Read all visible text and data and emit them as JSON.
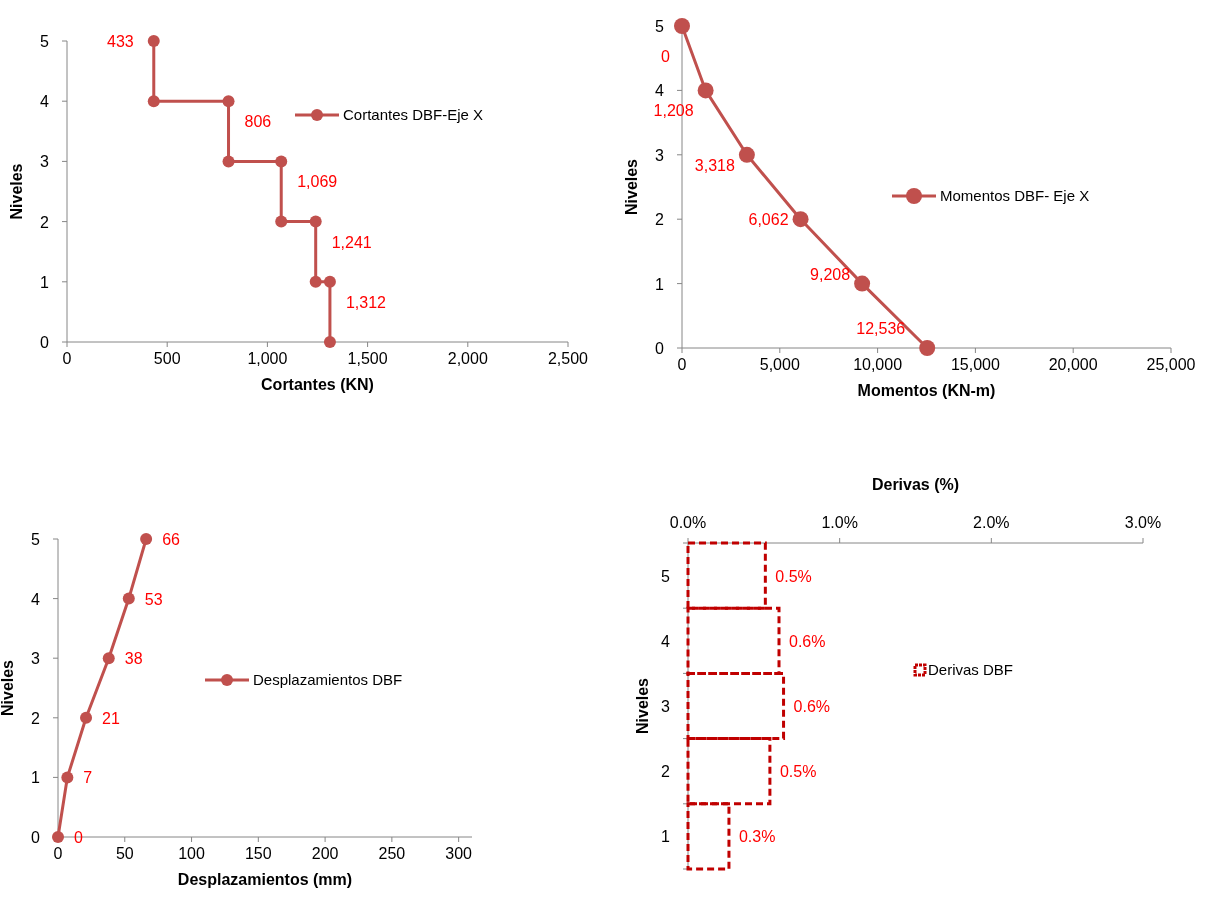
{
  "chart_data": [
    {
      "type": "line",
      "xlabel": "Cortantes (KN)",
      "ylabel": "Niveles",
      "xlim": [
        0,
        2500
      ],
      "xticks": [
        0,
        500,
        {
          "value": 1000,
          "label": "1,000"
        },
        {
          "value": 1500,
          "label": "1,500"
        },
        {
          "value": 2000,
          "label": "2,000"
        },
        {
          "value": 2500,
          "label": "2,500"
        }
      ],
      "ylim": [
        0,
        5
      ],
      "yticks": [
        0,
        1,
        2,
        3,
        4,
        5
      ],
      "marker": "circle",
      "legend": "right",
      "series": [
        {
          "name": "Cortantes DBF-Eje X",
          "color": "#c0504d",
          "x": [
            433,
            433,
            806,
            806,
            1069,
            1069,
            1241,
            1241,
            1312,
            1312
          ],
          "values": [
            5,
            4,
            4,
            3,
            3,
            2,
            2,
            1,
            1,
            0
          ]
        }
      ],
      "annotations": [
        {
          "text": "433",
          "x": 433,
          "y": 5
        },
        {
          "text": "806",
          "x": 806,
          "y": 4
        },
        {
          "text": "1,069",
          "x": 1069,
          "y": 3
        },
        {
          "text": "1,241",
          "x": 1241,
          "y": 2
        },
        {
          "text": "1,312",
          "x": 1312,
          "y": 1
        }
      ]
    },
    {
      "type": "line",
      "xlabel": "Momentos (KN-m)",
      "ylabel": "Niveles",
      "xlim": [
        0,
        25000
      ],
      "xticks": [
        0,
        {
          "value": 5000,
          "label": "5,000"
        },
        {
          "value": 10000,
          "label": "10,000"
        },
        {
          "value": 15000,
          "label": "15,000"
        },
        {
          "value": 20000,
          "label": "20,000"
        },
        {
          "value": 25000,
          "label": "25,000"
        }
      ],
      "ylim": [
        0,
        5
      ],
      "yticks": [
        0,
        1,
        2,
        3,
        4,
        5
      ],
      "marker": "circle",
      "legend": "right",
      "series": [
        {
          "name": "Momentos DBF- Eje X",
          "color": "#c0504d",
          "x": [
            12536,
            9208,
            6062,
            3318,
            1208,
            0
          ],
          "values": [
            0,
            1,
            2,
            3,
            4,
            5
          ]
        }
      ],
      "annotations": [
        {
          "text": "12,536",
          "x": 12536,
          "y": 0
        },
        {
          "text": "9,208",
          "x": 9208,
          "y": 1
        },
        {
          "text": "6,062",
          "x": 6062,
          "y": 2
        },
        {
          "text": "3,318",
          "x": 3318,
          "y": 3
        },
        {
          "text": "1,208",
          "x": 1208,
          "y": 4
        },
        {
          "text": "0",
          "x": 0,
          "y": 5
        }
      ]
    },
    {
      "type": "line",
      "xlabel": "Desplazamientos (mm)",
      "ylabel": "Niveles",
      "xlim": [
        0,
        310
      ],
      "xticks": [
        0,
        50,
        100,
        150,
        200,
        250,
        300
      ],
      "ylim": [
        0,
        5
      ],
      "yticks": [
        0,
        1,
        2,
        3,
        4,
        5
      ],
      "marker": "circle",
      "legend": "right",
      "series": [
        {
          "name": "Desplazamientos DBF",
          "color": "#c0504d",
          "x": [
            0,
            7,
            21,
            38,
            53,
            66
          ],
          "values": [
            0,
            1,
            2,
            3,
            4,
            5
          ]
        }
      ],
      "annotations": [
        {
          "text": "0",
          "x": 0,
          "y": 0
        },
        {
          "text": "7",
          "x": 7,
          "y": 1
        },
        {
          "text": "21",
          "x": 21,
          "y": 2
        },
        {
          "text": "38",
          "x": 38,
          "y": 3
        },
        {
          "text": "53",
          "x": 53,
          "y": 4
        },
        {
          "text": "66",
          "x": 66,
          "y": 5
        }
      ]
    },
    {
      "type": "bar",
      "orientation": "horizontal",
      "xlabel": "Derivas (%)",
      "ylabel": "Niveles",
      "categories": [
        "5",
        "4",
        "3",
        "2",
        "1"
      ],
      "xlim": [
        0,
        3
      ],
      "xticks": [
        {
          "value": 0,
          "label": "0.0%"
        },
        {
          "value": 1,
          "label": "1.0%"
        },
        {
          "value": 2,
          "label": "2.0%"
        },
        {
          "value": 3,
          "label": "3.0%"
        }
      ],
      "line_style": "dashed",
      "legend": "right",
      "series": [
        {
          "name": "Derivas DBF",
          "color": "#c00000",
          "values": [
            0.51,
            0.6,
            0.63,
            0.54,
            0.27
          ],
          "value_labels": [
            "0.5%",
            "0.6%",
            "0.6%",
            "0.5%",
            "0.3%"
          ]
        }
      ]
    }
  ]
}
